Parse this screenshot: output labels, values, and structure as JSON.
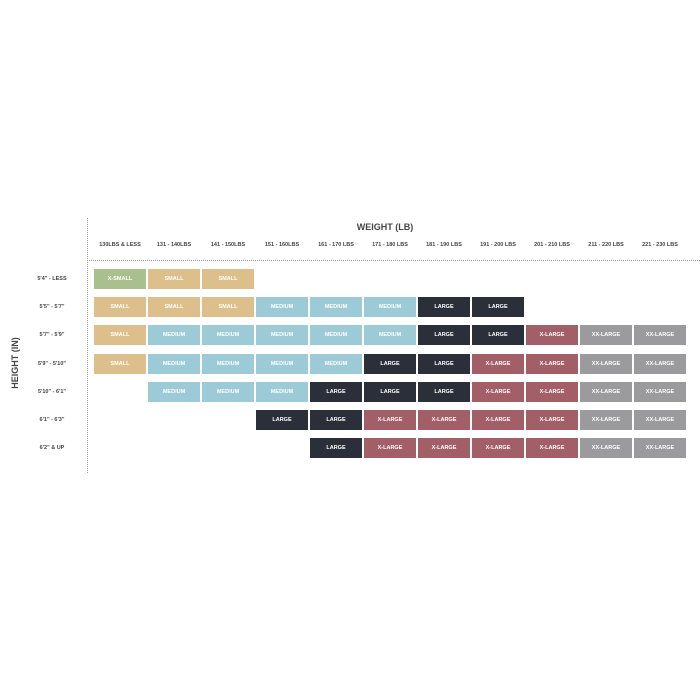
{
  "chart_data": {
    "type": "table",
    "title": "WEIGHT (LB)",
    "ylabel": "HEIGHT (IN)",
    "columns": [
      "130LBS & LESS",
      "131 - 140LBS",
      "141 - 150LBS",
      "151 - 160LBS",
      "161 - 170 LBS",
      "171 - 180 LBS",
      "181 - 190 LBS",
      "191 - 200 LBS",
      "201 - 210 LBS",
      "211 - 220 LBS",
      "221 - 230 LBS"
    ],
    "rows": [
      "5'4\" - LESS",
      "5'5\" - 5'7\"",
      "5'7\" - 5'9\"",
      "5'9\" - 5'10\"",
      "5'10\" - 6'1\"",
      "6'1\" - 6'3\"",
      "6'2\" & UP"
    ],
    "cells": [
      [
        "X-SMALL",
        "SMALL",
        "SMALL",
        "",
        "",
        "",
        "",
        "",
        "",
        "",
        ""
      ],
      [
        "SMALL",
        "SMALL",
        "SMALL",
        "MEDIUM",
        "MEDIUM",
        "MEDIUM",
        "LARGE",
        "LARGE",
        "",
        "",
        ""
      ],
      [
        "SMALL",
        "MEDIUM",
        "MEDIUM",
        "MEDIUM",
        "MEDIUM",
        "MEDIUM",
        "LARGE",
        "LARGE",
        "X-LARGE",
        "XX-LARGE",
        "XX-LARGE"
      ],
      [
        "SMALL",
        "MEDIUM",
        "MEDIUM",
        "MEDIUM",
        "MEDIUM",
        "LARGE",
        "LARGE",
        "X-LARGE",
        "X-LARGE",
        "XX-LARGE",
        "XX-LARGE"
      ],
      [
        "",
        "MEDIUM",
        "MEDIUM",
        "MEDIUM",
        "LARGE",
        "LARGE",
        "LARGE",
        "X-LARGE",
        "X-LARGE",
        "XX-LARGE",
        "XX-LARGE"
      ],
      [
        "",
        "",
        "",
        "LARGE",
        "LARGE",
        "X-LARGE",
        "X-LARGE",
        "X-LARGE",
        "X-LARGE",
        "XX-LARGE",
        "XX-LARGE"
      ],
      [
        "",
        "",
        "",
        "",
        "LARGE",
        "X-LARGE",
        "X-LARGE",
        "X-LARGE",
        "X-LARGE",
        "XX-LARGE",
        "XX-LARGE"
      ]
    ],
    "colors": {
      "X-SMALL": "#a9bf8e",
      "SMALL": "#dcbf8a",
      "MEDIUM": "#9ccad6",
      "LARGE": "#2b2f3a",
      "X-LARGE": "#a35f68",
      "XX-LARGE": "#9b9b9d"
    }
  }
}
